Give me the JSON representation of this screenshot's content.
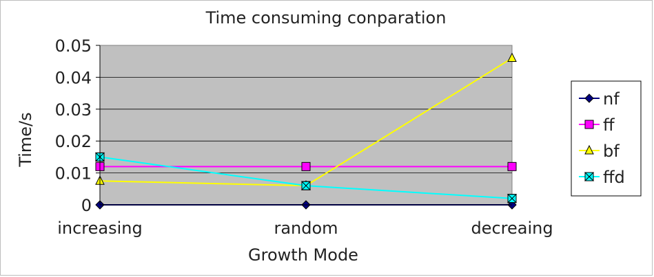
{
  "chart_data": {
    "type": "line",
    "title": "Time consuming conparation",
    "xlabel": "Growth Mode",
    "ylabel": "Time/s",
    "categories": [
      "increasing",
      "random",
      "decreaing"
    ],
    "ylim": [
      0,
      0.05
    ],
    "yticks": [
      "0",
      "0.01",
      "0.02",
      "0.03",
      "0.04",
      "0.05"
    ],
    "grid": true,
    "legend_position": "right",
    "plot_background": "#c0c0c0",
    "series": [
      {
        "name": "nf",
        "values": [
          0,
          0,
          0
        ],
        "color": "#000080",
        "marker": "diamond"
      },
      {
        "name": "ff",
        "values": [
          0.012,
          0.012,
          0.012
        ],
        "color": "#ff00ff",
        "marker": "square"
      },
      {
        "name": "bf",
        "values": [
          0.0075,
          0.006,
          0.046
        ],
        "color": "#ffff00",
        "marker": "triangle"
      },
      {
        "name": "ffd",
        "values": [
          0.015,
          0.006,
          0.002
        ],
        "color": "#00ffff",
        "marker": "bowtie"
      }
    ]
  }
}
